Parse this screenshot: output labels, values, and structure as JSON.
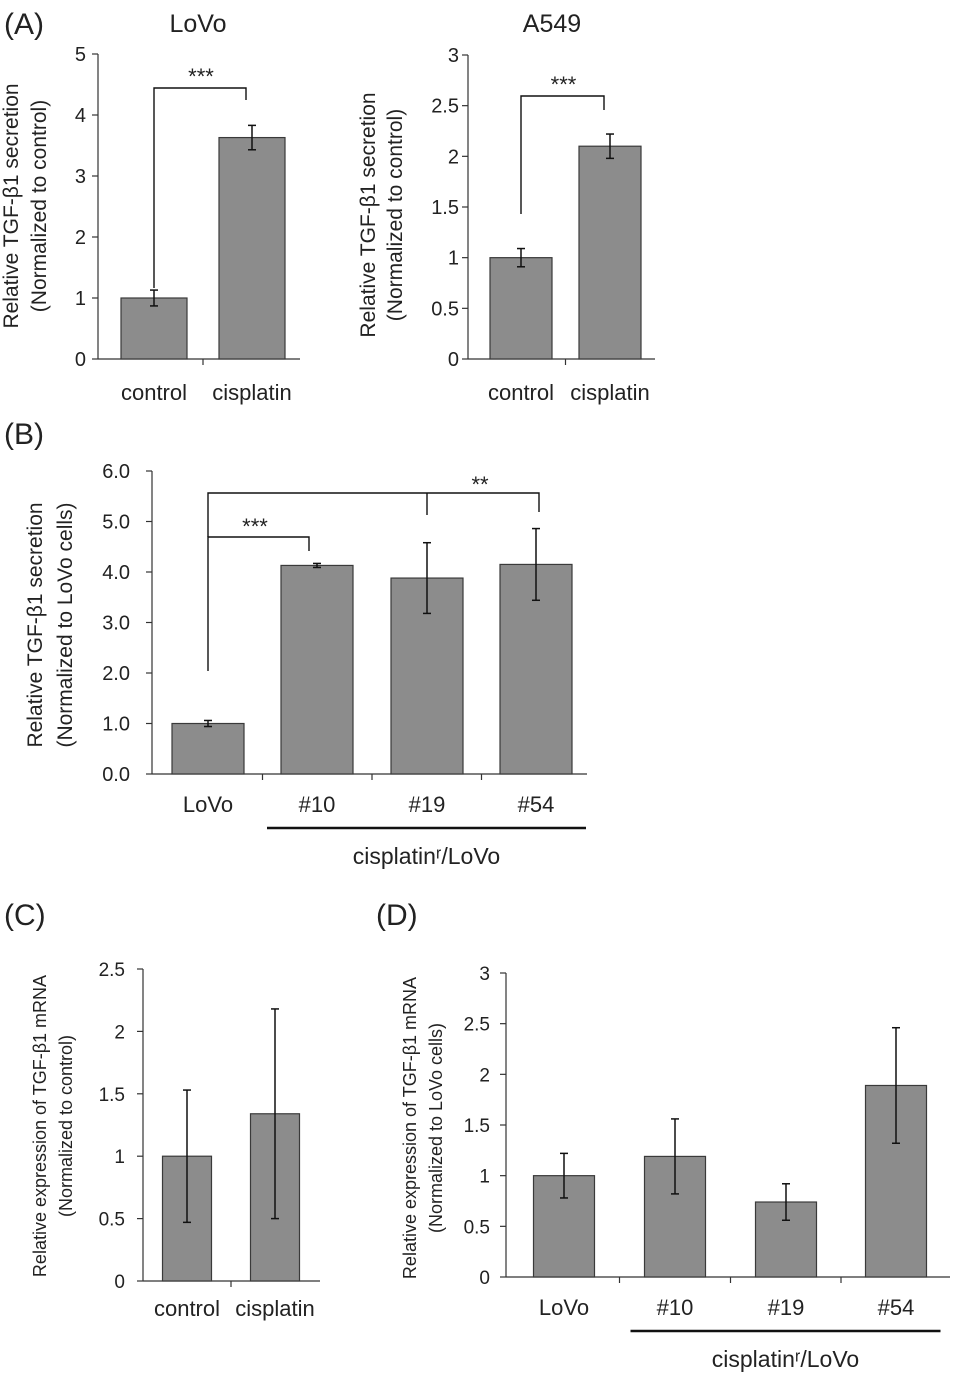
{
  "colors": {
    "bar_fill": "#8c8c8c",
    "bar_stroke": "#3a3a3a",
    "axis": "#333333",
    "text": "#222222"
  },
  "panels": {
    "A": {
      "label": "(A)"
    },
    "B": {
      "label": "(B)"
    },
    "C": {
      "label": "(C)"
    },
    "D": {
      "label": "(D)"
    }
  },
  "chart_data": [
    {
      "id": "A-LoVo",
      "type": "bar",
      "title": "LoVo",
      "ylabel": [
        "Relative TGF-β1 secretion",
        "(Normalized to control)"
      ],
      "ylim": [
        0,
        5
      ],
      "ticks": [
        "0",
        "1",
        "2",
        "3",
        "4",
        "5"
      ],
      "categories": [
        "control",
        "cisplatin"
      ],
      "values": [
        1.0,
        3.63
      ],
      "errors": [
        0.13,
        0.2
      ],
      "significance": [
        {
          "from": 0,
          "to": 1,
          "label": "***"
        }
      ]
    },
    {
      "id": "A-A549",
      "type": "bar",
      "title": "A549",
      "ylabel": [
        "Relative TGF-β1 secretion",
        "(Normalized to control)"
      ],
      "ylim": [
        0,
        3
      ],
      "ticks": [
        "0",
        "0.5",
        "1",
        "1.5",
        "2",
        "2.5",
        "3"
      ],
      "categories": [
        "control",
        "cisplatin"
      ],
      "values": [
        1.0,
        2.1
      ],
      "errors": [
        0.09,
        0.12
      ],
      "significance": [
        {
          "from": 0,
          "to": 1,
          "label": "***"
        }
      ]
    },
    {
      "id": "B",
      "type": "bar",
      "title": "",
      "ylabel": [
        "Relative TGF-β1 secretion",
        "(Normalized to LoVo cells)"
      ],
      "ylim": [
        0,
        6
      ],
      "ticks": [
        "0.0",
        "1.0",
        "2.0",
        "3.0",
        "4.0",
        "5.0",
        "6.0"
      ],
      "categories": [
        "LoVo",
        "#10",
        "#19",
        "#54"
      ],
      "values": [
        1.0,
        4.13,
        3.88,
        4.15
      ],
      "errors": [
        0.06,
        0.04,
        0.7,
        0.71
      ],
      "group_label": "cisplatinʳ/LoVo",
      "significance": [
        {
          "label": "***"
        },
        {
          "label": "**"
        }
      ]
    },
    {
      "id": "C",
      "type": "bar",
      "title": "",
      "ylabel": [
        "Relative expression of TGF-β1 mRNA",
        "(Normalized to control)"
      ],
      "ylim": [
        0,
        2.5
      ],
      "ticks": [
        "0",
        "0.5",
        "1",
        "1.5",
        "2",
        "2.5"
      ],
      "categories": [
        "control",
        "cisplatin"
      ],
      "values": [
        1.0,
        1.34
      ],
      "errors": [
        0.53,
        0.84
      ]
    },
    {
      "id": "D",
      "type": "bar",
      "title": "",
      "ylabel": [
        "Relative expression of TGF-β1 mRNA",
        "(Normalized to LoVo cells)"
      ],
      "ylim": [
        0,
        3
      ],
      "ticks": [
        "0",
        "0.5",
        "1",
        "1.5",
        "2",
        "2.5",
        "3"
      ],
      "categories": [
        "LoVo",
        "#10",
        "#19",
        "#54"
      ],
      "values": [
        1.0,
        1.19,
        0.74,
        1.89
      ],
      "errors": [
        0.22,
        0.37,
        0.18,
        0.57
      ],
      "group_label": "cisplatinʳ/LoVo"
    }
  ]
}
